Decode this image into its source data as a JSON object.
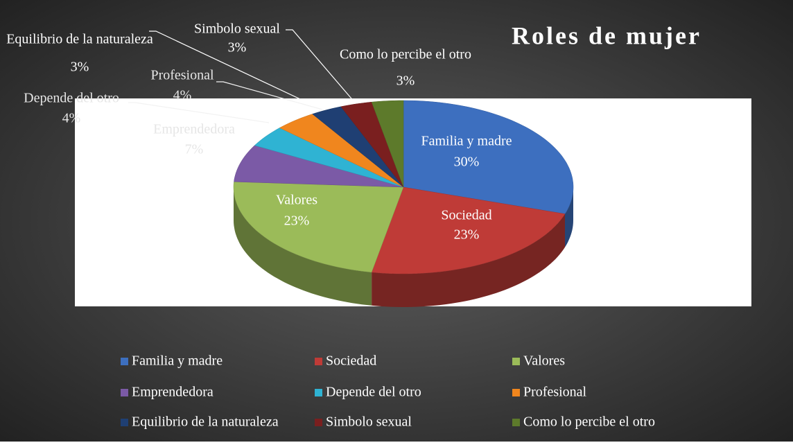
{
  "chart_data": {
    "type": "pie",
    "title": "Roles de mujer",
    "categories": [
      "Familia y madre",
      "Sociedad",
      "Valores",
      "Emprendedora",
      "Depende del otro",
      "Profesional",
      "Equilibrio de la naturaleza",
      "Simbolo sexual",
      "Como lo percibe el otro"
    ],
    "values": [
      30,
      23,
      23,
      7,
      4,
      4,
      3,
      3,
      3
    ],
    "value_labels": [
      "30%",
      "23%",
      "23%",
      "7%",
      "4%",
      "4%",
      "3%",
      "3%",
      "3%"
    ],
    "colors": [
      "#3d6fbf",
      "#bf3b37",
      "#9bbb59",
      "#7b5aa6",
      "#2fb3d3",
      "#f0861e",
      "#1f3f73",
      "#7a1f1f",
      "#5d7a2b"
    ],
    "legend": "bottom"
  }
}
